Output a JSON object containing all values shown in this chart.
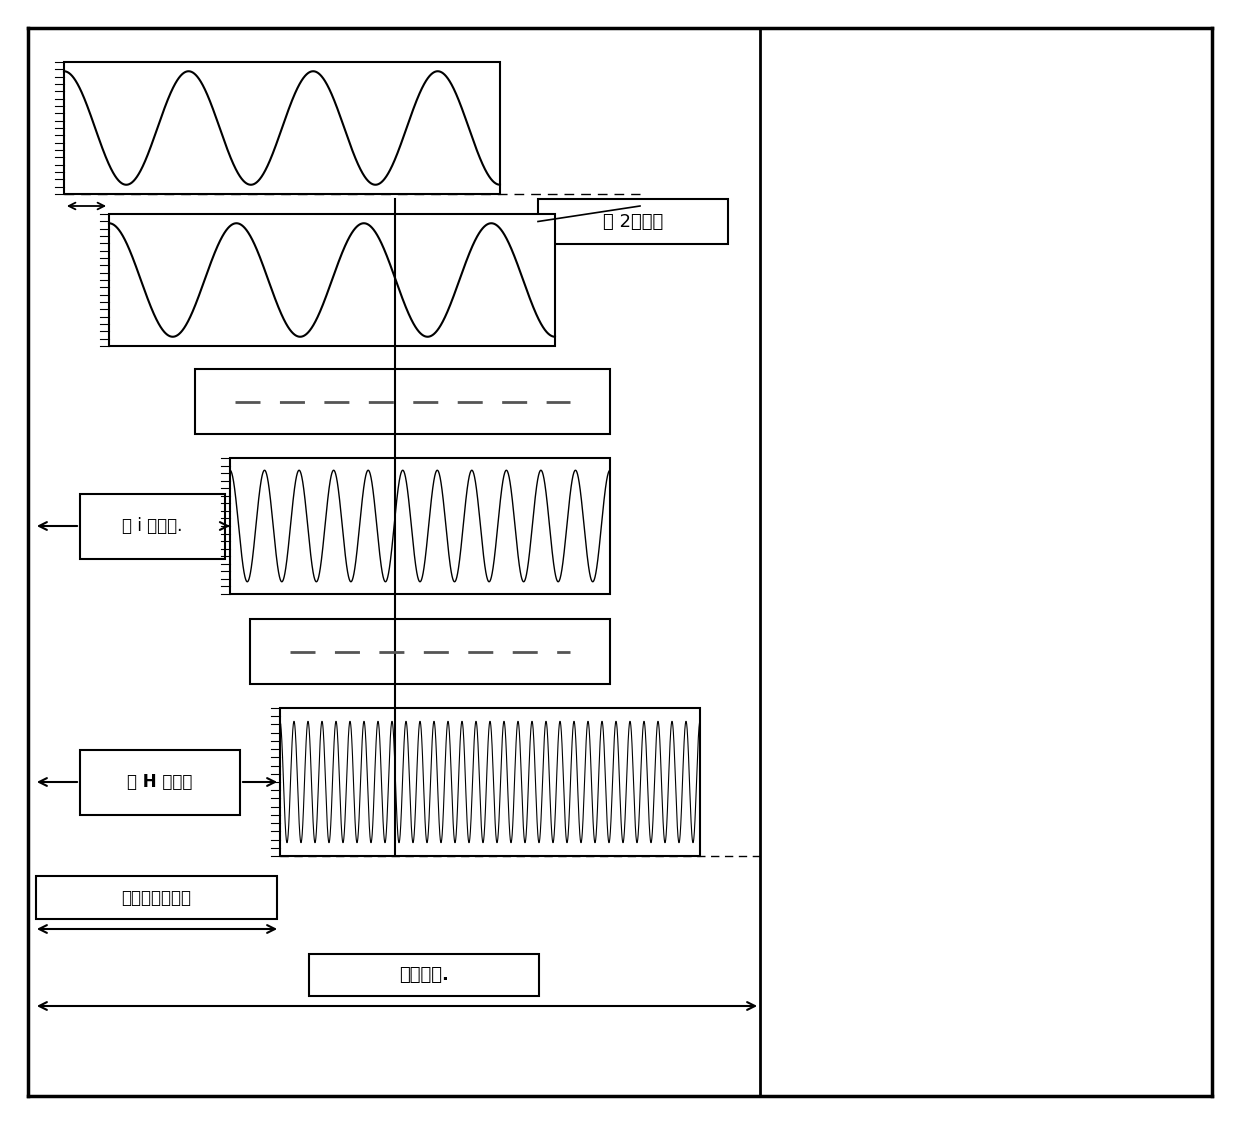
{
  "bg_color": "#ffffff",
  "border_color": "#000000",
  "wave1_freq": 3.5,
  "wave2_freq": 3.5,
  "wave_i_freq": 11,
  "wave_N_freq": 30,
  "wave1_label": "第 2个时延",
  "wave_i_label": "第 i 个时延.",
  "wave_N_label": "第 H 个时延",
  "subwave_label": "第一子波有效期",
  "symbol_label": "码元周期.",
  "line_color": "#000000",
  "dash_color": "#666666"
}
